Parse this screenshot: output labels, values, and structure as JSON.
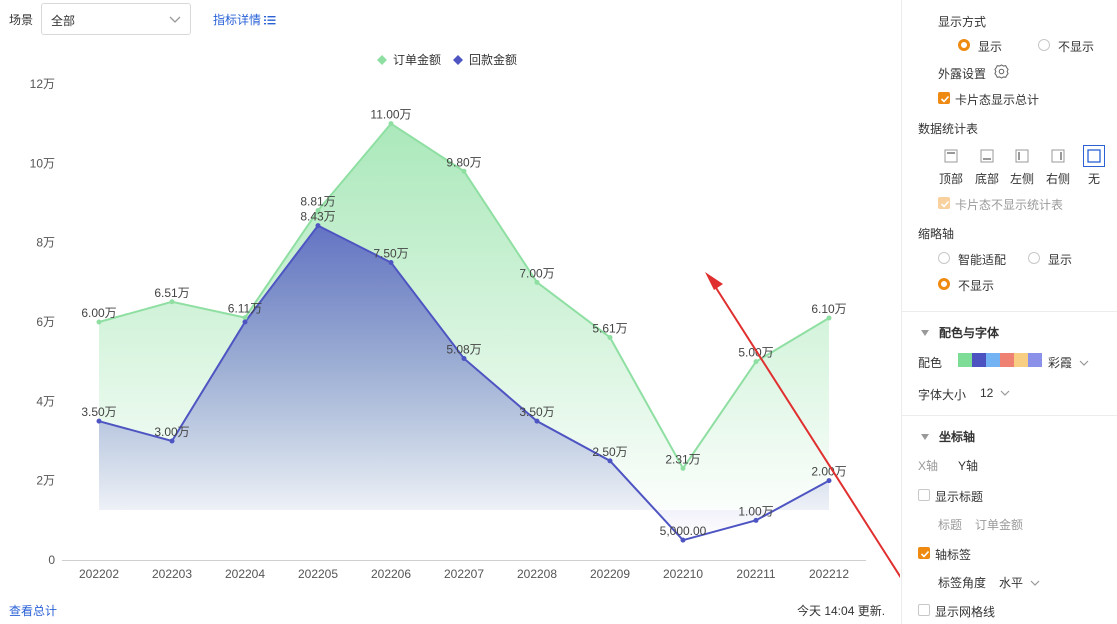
{
  "filter": {
    "scene_label": "场景",
    "scene_value": "全部",
    "detail_link": "指标详情"
  },
  "footer": {
    "view_total": "查看总计",
    "update_text": "今天 14:04 更新."
  },
  "chart_data": {
    "type": "area",
    "categories": [
      "202202",
      "202203",
      "202204",
      "202205",
      "202206",
      "202207",
      "202208",
      "202209",
      "202210",
      "202211",
      "202212"
    ],
    "series": [
      {
        "name": "订单金额",
        "color": "#8fdfa3",
        "values": [
          60000,
          65100,
          61100,
          88100,
          110000,
          98000,
          70000,
          56100,
          23100,
          50000,
          61000
        ],
        "labels": [
          "6.00万",
          "6.51万",
          "6.11万",
          "8.81万",
          "11.00万",
          "9.80万",
          "7.00万",
          "5.61万",
          "2.31万",
          "5.00万",
          "6.10万"
        ]
      },
      {
        "name": "回款金额",
        "color": "#4e55c2",
        "values": [
          35000,
          30000,
          60000,
          84300,
          75000,
          50800,
          35000,
          25000,
          5000,
          10000,
          20000
        ],
        "labels": [
          "3.50万",
          "3.00万",
          "",
          "8.43万",
          "7.50万",
          "5.08万",
          "3.50万",
          "2.50万",
          "5,000.00",
          "1.00万",
          "2.00万"
        ]
      }
    ],
    "y_ticks": [
      "0",
      "2万",
      "4万",
      "6万",
      "8万",
      "10万",
      "12万"
    ],
    "ylim": [
      0,
      120000
    ],
    "legend_position": "top-center",
    "grid": false
  },
  "panel": {
    "display_mode": {
      "title": "显示方式",
      "show": "显示",
      "hide": "不显示"
    },
    "exposure": {
      "label": "外露设置"
    },
    "card_total": "卡片态显示总计",
    "stats_table": {
      "title": "数据统计表",
      "positions": [
        "顶部",
        "底部",
        "左侧",
        "右侧",
        "无"
      ],
      "card_hide": "卡片态不显示统计表"
    },
    "thumb_axis": {
      "title": "缩略轴",
      "smart": "智能适配",
      "show": "显示",
      "hide": "不显示"
    },
    "color_font": {
      "title": "配色与字体",
      "palette_label": "配色",
      "palette_name": "彩霞",
      "palette_colors": [
        "#7ddc95",
        "#4d52c1",
        "#74b3f3",
        "#ef8173",
        "#f8cf82",
        "#8b90e8"
      ],
      "font_size_label": "字体大小",
      "font_size_value": "12"
    },
    "axis": {
      "title": "坐标轴",
      "tab_x": "X轴",
      "tab_y": "Y轴",
      "show_title": "显示标题",
      "title_label": "标题",
      "title_value": "订单金额",
      "axis_label": "轴标签",
      "label_angle": "标签角度",
      "label_angle_value": "水平",
      "show_grid": "显示网格线"
    }
  }
}
